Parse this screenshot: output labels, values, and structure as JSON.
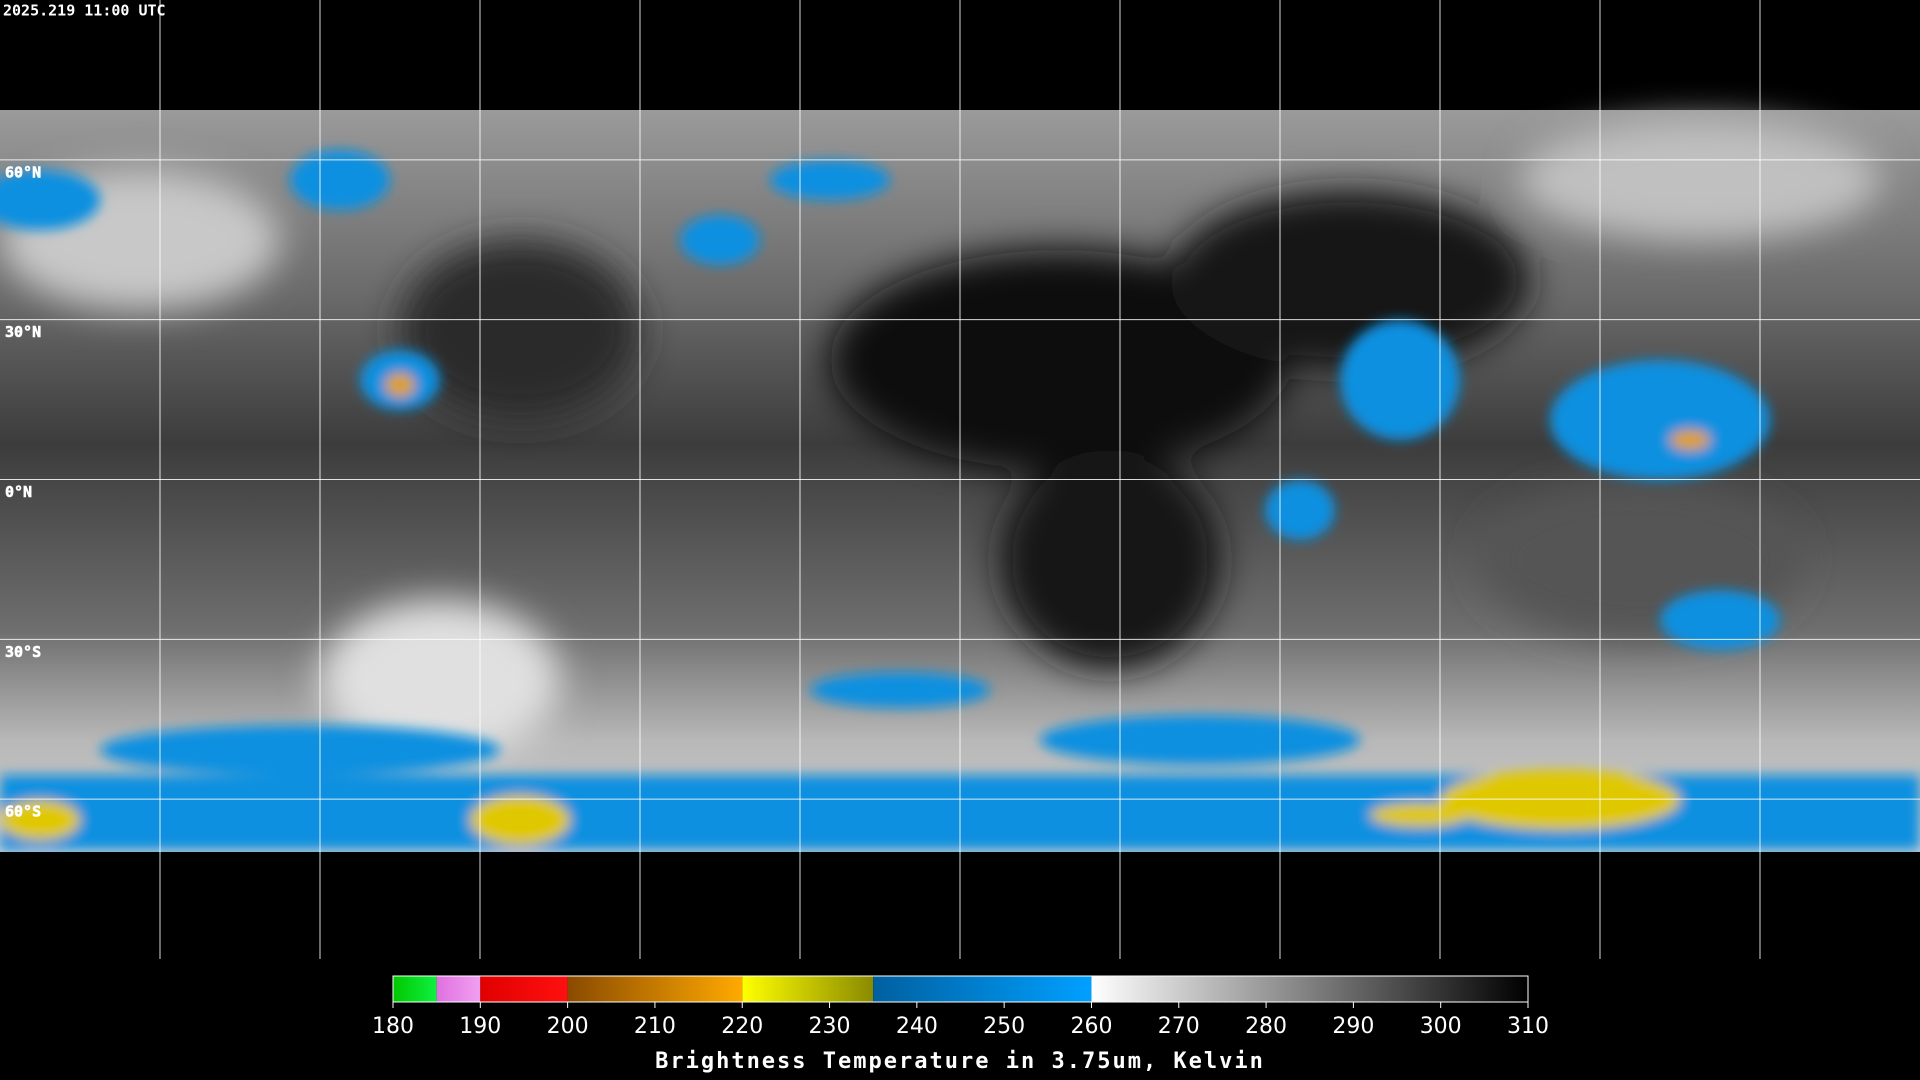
{
  "header": {
    "timestamp": "2025.219 11:00 UTC"
  },
  "map": {
    "lat_lines": [
      {
        "value": 60,
        "label": "60°N"
      },
      {
        "value": 30,
        "label": "30°N"
      },
      {
        "value": 0,
        "label": "0°N"
      },
      {
        "value": -30,
        "label": "30°S"
      },
      {
        "value": -60,
        "label": "60°S"
      }
    ]
  },
  "colorbar": {
    "title": "Brightness Temperature in 3.75um, Kelvin",
    "range": [
      180,
      310
    ],
    "ticks": [
      180,
      190,
      200,
      210,
      220,
      230,
      240,
      250,
      260,
      270,
      280,
      290,
      300,
      310
    ],
    "segments": [
      {
        "from": 180,
        "to": 185,
        "colors": [
          "#00c800",
          "#10f040"
        ]
      },
      {
        "from": 185,
        "to": 190,
        "colors": [
          "#e070e0",
          "#f0a0f0"
        ]
      },
      {
        "from": 190,
        "to": 200,
        "colors": [
          "#e00000",
          "#ff1010"
        ]
      },
      {
        "from": 200,
        "to": 220,
        "colors": [
          "#8a4a00",
          "#ffaa00"
        ]
      },
      {
        "from": 220,
        "to": 235,
        "colors": [
          "#ffff00",
          "#8a8a00"
        ]
      },
      {
        "from": 235,
        "to": 260,
        "colors": [
          "#0060a0",
          "#00a0ff"
        ]
      },
      {
        "from": 260,
        "to": 310,
        "colors": [
          "#ffffff",
          "#000000"
        ]
      }
    ]
  }
}
